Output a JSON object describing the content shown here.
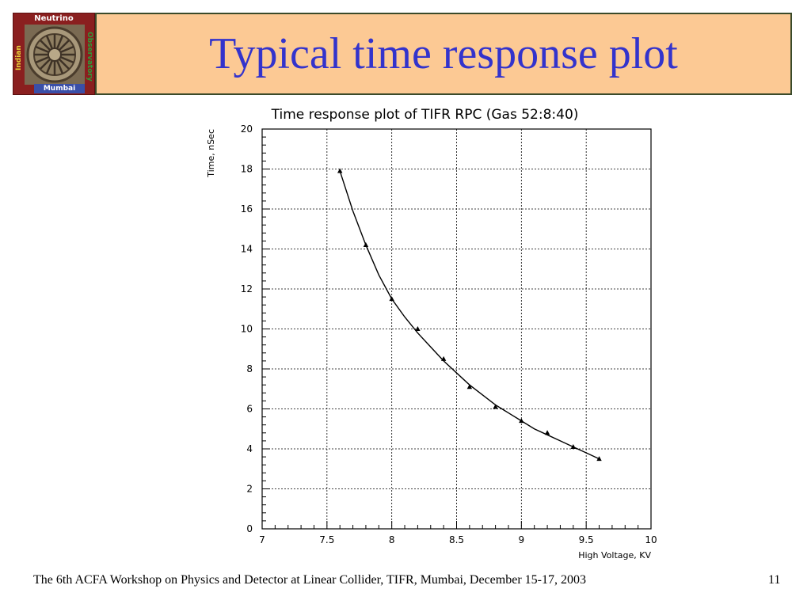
{
  "logo": {
    "top_text": "Neutrino",
    "bottom_text": "Mumbai",
    "left_text": "Indian",
    "right_text": "Observatory"
  },
  "slide": {
    "title": "Typical time response plot",
    "footer": "The 6th ACFA Workshop on Physics and Detector at Linear Collider, TIFR, Mumbai, December 15-17, 2003",
    "page_number": "11"
  },
  "colors": {
    "title": "#3333cc",
    "title_box": "#fcc994"
  },
  "chart_data": {
    "type": "scatter",
    "title": "Time response plot of TIFR RPC (Gas 52:8:40)",
    "xlabel": "High Voltage, KV",
    "ylabel": "Time, nSec",
    "xlim": [
      7,
      10
    ],
    "ylim": [
      0,
      20
    ],
    "x_ticks": [
      "7",
      "7.5",
      "8",
      "8.5",
      "9",
      "9.5",
      "10"
    ],
    "y_ticks": [
      "0",
      "2",
      "4",
      "6",
      "8",
      "10",
      "12",
      "14",
      "16",
      "18",
      "20"
    ],
    "grid": true,
    "series": [
      {
        "marker": "triangle",
        "x": [
          7.6,
          7.8,
          8.0,
          8.2,
          8.4,
          8.6,
          8.8,
          9.0,
          9.2,
          9.4,
          9.6
        ],
        "y": [
          17.9,
          14.2,
          11.5,
          10.0,
          8.5,
          7.1,
          6.1,
          5.4,
          4.8,
          4.1,
          3.5
        ]
      }
    ],
    "fit_curve": {
      "x": [
        7.6,
        7.7,
        7.8,
        7.9,
        8.0,
        8.1,
        8.2,
        8.3,
        8.4,
        8.5,
        8.6,
        8.7,
        8.8,
        8.9,
        9.0,
        9.1,
        9.2,
        9.3,
        9.4,
        9.5,
        9.6
      ],
      "y": [
        17.9,
        15.9,
        14.2,
        12.7,
        11.5,
        10.6,
        9.8,
        9.1,
        8.4,
        7.8,
        7.2,
        6.7,
        6.2,
        5.8,
        5.4,
        5.0,
        4.7,
        4.4,
        4.1,
        3.8,
        3.5
      ]
    }
  }
}
